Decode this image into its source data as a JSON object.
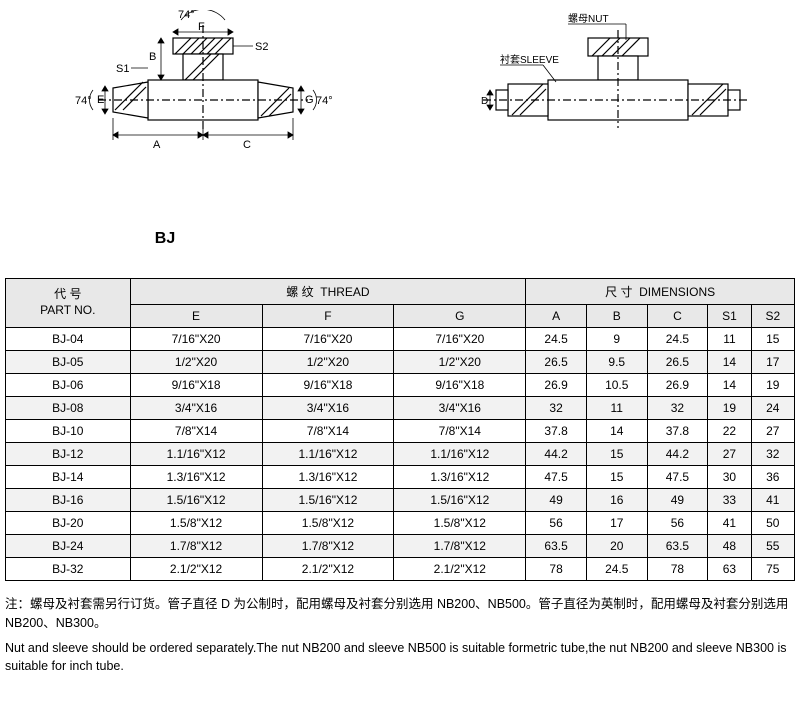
{
  "model": "BJ",
  "diagram_left": {
    "angle_top": "74°",
    "angle_left": "74°",
    "angle_right": "74°",
    "dim_F": "F",
    "dim_B": "B",
    "dim_S2": "S2",
    "dim_S1": "S1",
    "dim_E": "E",
    "dim_G": "G",
    "dim_A": "A",
    "dim_C": "C"
  },
  "diagram_right": {
    "nut_label_cn": "螺母",
    "nut_label_en": "NUT",
    "sleeve_label_cn": "衬套",
    "sleeve_label_en": "SLEEVE",
    "dim_D": "D"
  },
  "table": {
    "header_partno_cn": "代 号",
    "header_partno_en": "PART NO.",
    "header_thread_cn": "螺  纹",
    "header_thread_en": "THREAD",
    "header_dim_cn": "尺  寸",
    "header_dim_en": "DIMENSIONS",
    "columns": [
      "E",
      "F",
      "G",
      "A",
      "B",
      "C",
      "S1",
      "S2"
    ],
    "rows": [
      {
        "part": "BJ-04",
        "E": "7/16\"X20",
        "F": "7/16\"X20",
        "G": "7/16\"X20",
        "A": "24.5",
        "B": "9",
        "C": "24.5",
        "S1": "11",
        "S2": "15"
      },
      {
        "part": "BJ-05",
        "E": "1/2\"X20",
        "F": "1/2\"X20",
        "G": "1/2\"X20",
        "A": "26.5",
        "B": "9.5",
        "C": "26.5",
        "S1": "14",
        "S2": "17"
      },
      {
        "part": "BJ-06",
        "E": "9/16\"X18",
        "F": "9/16\"X18",
        "G": "9/16\"X18",
        "A": "26.9",
        "B": "10.5",
        "C": "26.9",
        "S1": "14",
        "S2": "19"
      },
      {
        "part": "BJ-08",
        "E": "3/4\"X16",
        "F": "3/4\"X16",
        "G": "3/4\"X16",
        "A": "32",
        "B": "11",
        "C": "32",
        "S1": "19",
        "S2": "24"
      },
      {
        "part": "BJ-10",
        "E": "7/8\"X14",
        "F": "7/8\"X14",
        "G": "7/8\"X14",
        "A": "37.8",
        "B": "14",
        "C": "37.8",
        "S1": "22",
        "S2": "27"
      },
      {
        "part": "BJ-12",
        "E": "1.1/16\"X12",
        "F": "1.1/16\"X12",
        "G": "1.1/16\"X12",
        "A": "44.2",
        "B": "15",
        "C": "44.2",
        "S1": "27",
        "S2": "32"
      },
      {
        "part": "BJ-14",
        "E": "1.3/16\"X12",
        "F": "1.3/16\"X12",
        "G": "1.3/16\"X12",
        "A": "47.5",
        "B": "15",
        "C": "47.5",
        "S1": "30",
        "S2": "36"
      },
      {
        "part": "BJ-16",
        "E": "1.5/16\"X12",
        "F": "1.5/16\"X12",
        "G": "1.5/16\"X12",
        "A": "49",
        "B": "16",
        "C": "49",
        "S1": "33",
        "S2": "41"
      },
      {
        "part": "BJ-20",
        "E": "1.5/8\"X12",
        "F": "1.5/8\"X12",
        "G": "1.5/8\"X12",
        "A": "56",
        "B": "17",
        "C": "56",
        "S1": "41",
        "S2": "50"
      },
      {
        "part": "BJ-24",
        "E": "1.7/8\"X12",
        "F": "1.7/8\"X12",
        "G": "1.7/8\"X12",
        "A": "63.5",
        "B": "20",
        "C": "63.5",
        "S1": "48",
        "S2": "55"
      },
      {
        "part": "BJ-32",
        "E": "2.1/2\"X12",
        "F": "2.1/2\"X12",
        "G": "2.1/2\"X12",
        "A": "78",
        "B": "24.5",
        "C": "78",
        "S1": "63",
        "S2": "75"
      }
    ]
  },
  "notes": {
    "note_cn": "注：螺母及衬套需另行订货。管子直径 D 为公制时，配用螺母及衬套分别选用 NB200、NB500。管子直径为英制时，配用螺母及衬套分别选用 NB200、NB300。",
    "note_en": " Nut and sleeve should be ordered separately.The nut NB200 and sleeve NB500 is suitable formetric tube,the nut NB200 and sleeve NB300 is suitable for inch tube."
  },
  "styling": {
    "header_bg": "#e8e8e8",
    "alt_row_bg": "#f2f2f2",
    "border_color": "#000000",
    "font_size_table": 12,
    "font_size_notes": 12.5
  }
}
